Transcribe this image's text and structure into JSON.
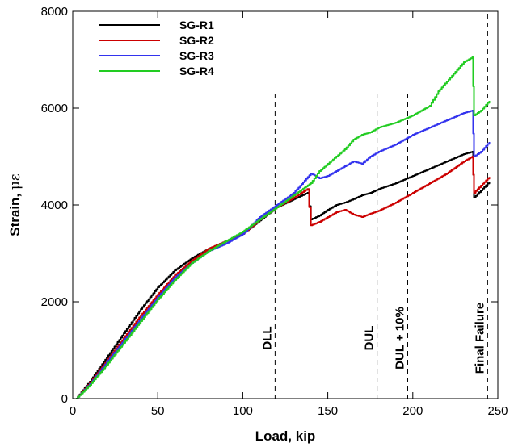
{
  "chart_data": {
    "type": "line",
    "xlabel": "Load, kip",
    "ylabel": "Strain, ",
    "ylabel_unit": "με",
    "xlim": [
      0,
      250
    ],
    "ylim": [
      0,
      8000
    ],
    "xticks": [
      0,
      50,
      100,
      150,
      200,
      250
    ],
    "yticks": [
      0,
      2000,
      4000,
      6000,
      8000
    ],
    "grid": false,
    "legend": "top-left",
    "series": [
      {
        "name": "SG-R1",
        "color": "#000000",
        "points": [
          [
            2,
            0
          ],
          [
            10,
            350
          ],
          [
            20,
            850
          ],
          [
            30,
            1350
          ],
          [
            40,
            1850
          ],
          [
            50,
            2300
          ],
          [
            60,
            2650
          ],
          [
            70,
            2900
          ],
          [
            80,
            3100
          ],
          [
            90,
            3250
          ],
          [
            100,
            3400
          ],
          [
            110,
            3680
          ],
          [
            120,
            3950
          ],
          [
            130,
            4120
          ],
          [
            138,
            4250
          ],
          [
            140,
            3700
          ],
          [
            145,
            3780
          ],
          [
            150,
            3900
          ],
          [
            155,
            4000
          ],
          [
            160,
            4050
          ],
          [
            165,
            4120
          ],
          [
            170,
            4200
          ],
          [
            175,
            4250
          ],
          [
            180,
            4330
          ],
          [
            190,
            4450
          ],
          [
            200,
            4600
          ],
          [
            210,
            4750
          ],
          [
            220,
            4900
          ],
          [
            230,
            5050
          ],
          [
            235,
            5100
          ],
          [
            236,
            4150
          ],
          [
            240,
            4300
          ],
          [
            245,
            4480
          ]
        ]
      },
      {
        "name": "SG-R2",
        "color": "#cc0000",
        "points": [
          [
            2,
            0
          ],
          [
            10,
            320
          ],
          [
            20,
            780
          ],
          [
            30,
            1250
          ],
          [
            40,
            1720
          ],
          [
            50,
            2150
          ],
          [
            60,
            2550
          ],
          [
            70,
            2850
          ],
          [
            80,
            3100
          ],
          [
            90,
            3250
          ],
          [
            100,
            3400
          ],
          [
            110,
            3700
          ],
          [
            120,
            3950
          ],
          [
            130,
            4150
          ],
          [
            138,
            4330
          ],
          [
            140,
            3580
          ],
          [
            145,
            3650
          ],
          [
            150,
            3750
          ],
          [
            155,
            3850
          ],
          [
            160,
            3900
          ],
          [
            165,
            3800
          ],
          [
            170,
            3750
          ],
          [
            175,
            3820
          ],
          [
            180,
            3880
          ],
          [
            190,
            4050
          ],
          [
            200,
            4250
          ],
          [
            210,
            4450
          ],
          [
            220,
            4650
          ],
          [
            230,
            4900
          ],
          [
            235,
            5000
          ],
          [
            236,
            4250
          ],
          [
            240,
            4400
          ],
          [
            245,
            4580
          ]
        ]
      },
      {
        "name": "SG-R3",
        "color": "#3333ee",
        "points": [
          [
            2,
            0
          ],
          [
            10,
            300
          ],
          [
            20,
            750
          ],
          [
            30,
            1200
          ],
          [
            40,
            1650
          ],
          [
            50,
            2100
          ],
          [
            60,
            2500
          ],
          [
            70,
            2800
          ],
          [
            80,
            3050
          ],
          [
            90,
            3200
          ],
          [
            100,
            3400
          ],
          [
            110,
            3750
          ],
          [
            120,
            4000
          ],
          [
            130,
            4250
          ],
          [
            140,
            4650
          ],
          [
            145,
            4550
          ],
          [
            150,
            4600
          ],
          [
            155,
            4700
          ],
          [
            160,
            4800
          ],
          [
            165,
            4900
          ],
          [
            170,
            4850
          ],
          [
            175,
            5000
          ],
          [
            180,
            5100
          ],
          [
            190,
            5250
          ],
          [
            200,
            5450
          ],
          [
            210,
            5600
          ],
          [
            220,
            5750
          ],
          [
            230,
            5900
          ],
          [
            235,
            5950
          ],
          [
            236,
            5000
          ],
          [
            240,
            5100
          ],
          [
            245,
            5300
          ]
        ]
      },
      {
        "name": "SG-R4",
        "color": "#22cc22",
        "points": [
          [
            2,
            0
          ],
          [
            10,
            280
          ],
          [
            20,
            700
          ],
          [
            30,
            1150
          ],
          [
            40,
            1600
          ],
          [
            50,
            2050
          ],
          [
            60,
            2450
          ],
          [
            70,
            2800
          ],
          [
            80,
            3050
          ],
          [
            90,
            3250
          ],
          [
            100,
            3450
          ],
          [
            110,
            3700
          ],
          [
            120,
            3950
          ],
          [
            130,
            4200
          ],
          [
            140,
            4450
          ],
          [
            145,
            4700
          ],
          [
            150,
            4850
          ],
          [
            155,
            5000
          ],
          [
            160,
            5150
          ],
          [
            165,
            5350
          ],
          [
            170,
            5450
          ],
          [
            175,
            5500
          ],
          [
            180,
            5600
          ],
          [
            190,
            5700
          ],
          [
            200,
            5850
          ],
          [
            210,
            6050
          ],
          [
            215,
            6350
          ],
          [
            220,
            6550
          ],
          [
            225,
            6750
          ],
          [
            230,
            6950
          ],
          [
            235,
            7050
          ],
          [
            236,
            5850
          ],
          [
            240,
            5950
          ],
          [
            245,
            6150
          ]
        ]
      }
    ],
    "reference_lines": [
      {
        "x": 119,
        "label": "DLL"
      },
      {
        "x": 179,
        "label": "DUL"
      },
      {
        "x": 197,
        "label": "DUL + 10%"
      },
      {
        "x": 244,
        "label": "Final Failure"
      }
    ]
  }
}
